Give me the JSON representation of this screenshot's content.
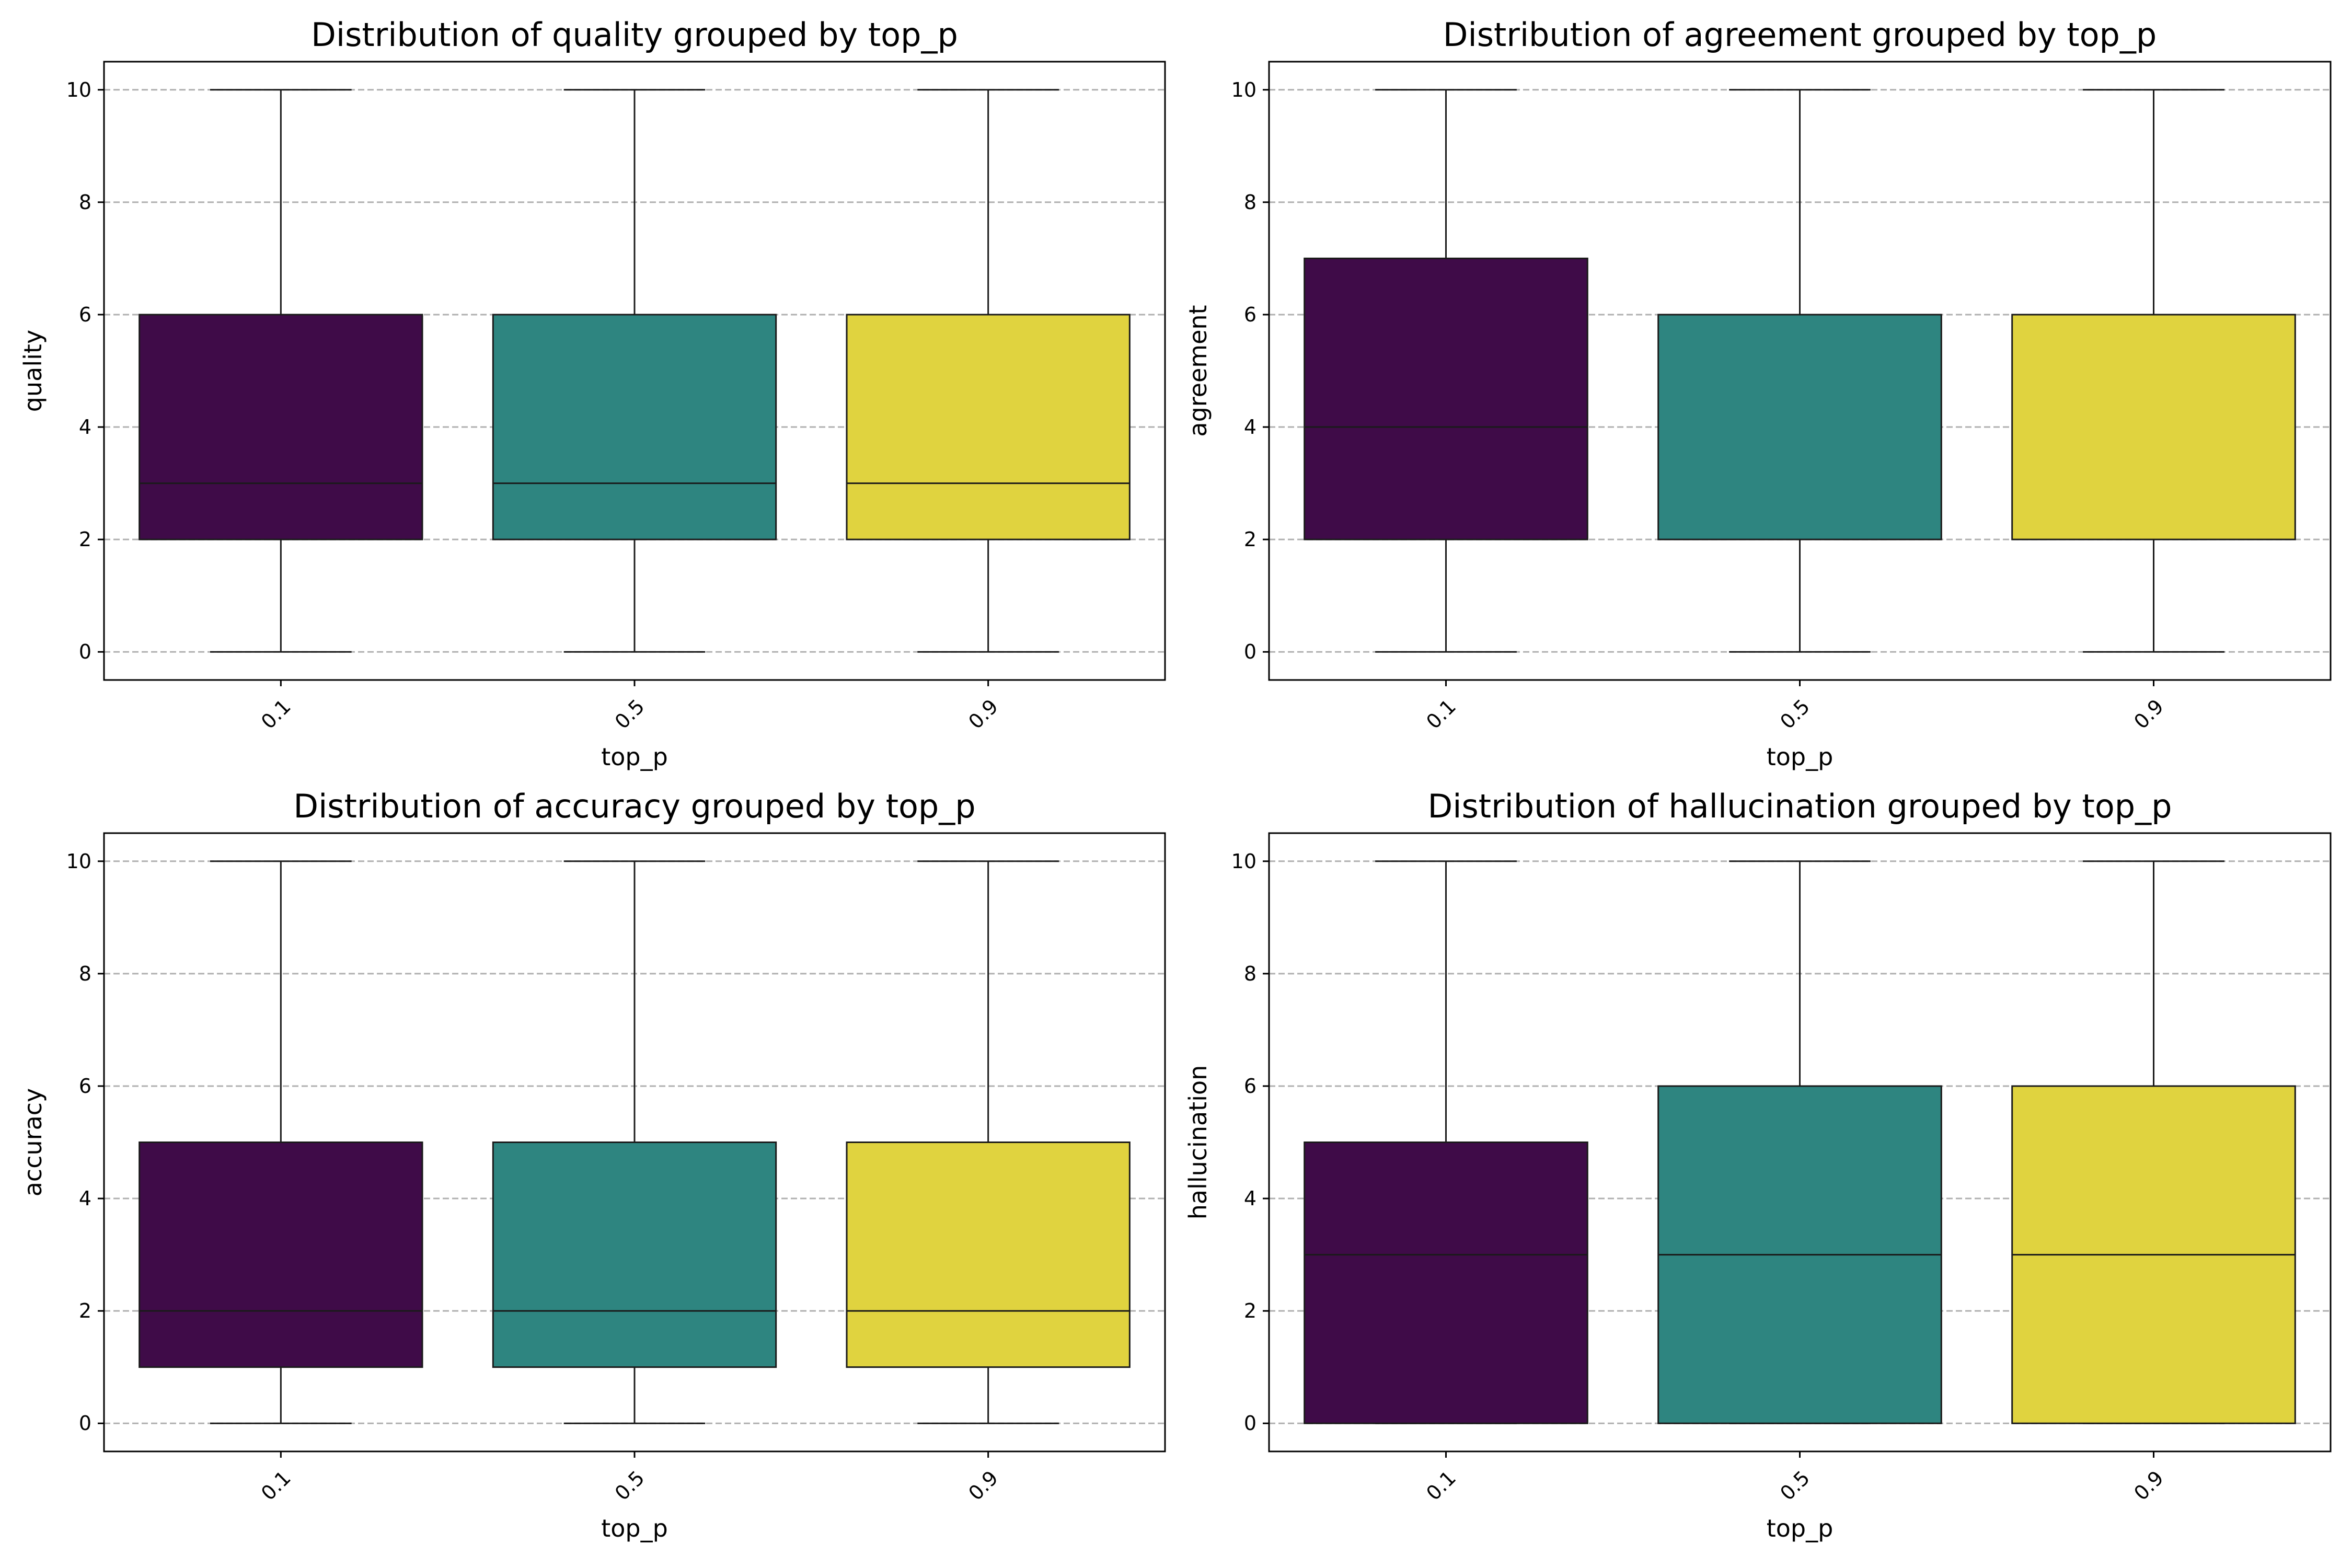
{
  "chart_data": [
    {
      "type": "box",
      "title": "Distribution of quality grouped by top_p",
      "xlabel": "top_p",
      "ylabel": "quality",
      "categories": [
        "0.1",
        "0.5",
        "0.9"
      ],
      "colors": [
        "#3f0b48",
        "#2e8580",
        "#e0d33f"
      ],
      "ylim": [
        -0.5,
        10.5
      ],
      "yticks": [
        0,
        2,
        4,
        6,
        8,
        10
      ],
      "grid": "y",
      "boxes": [
        {
          "min": 0,
          "q1": 2,
          "median": 3,
          "q3": 6,
          "max": 10
        },
        {
          "min": 0,
          "q1": 2,
          "median": 3,
          "q3": 6,
          "max": 10
        },
        {
          "min": 0,
          "q1": 2,
          "median": 3,
          "q3": 6,
          "max": 10
        }
      ]
    },
    {
      "type": "box",
      "title": "Distribution of agreement grouped by top_p",
      "xlabel": "top_p",
      "ylabel": "agreement",
      "categories": [
        "0.1",
        "0.5",
        "0.9"
      ],
      "colors": [
        "#3f0b48",
        "#2e8580",
        "#e0d33f"
      ],
      "ylim": [
        -0.5,
        10.5
      ],
      "yticks": [
        0,
        2,
        4,
        6,
        8,
        10
      ],
      "grid": "y",
      "boxes": [
        {
          "min": 0,
          "q1": 2,
          "median": 4,
          "q3": 7,
          "max": 10
        },
        {
          "min": 0,
          "q1": 2,
          "median": 6,
          "q3": 6,
          "max": 10
        },
        {
          "min": 0,
          "q1": 2,
          "median": 6,
          "q3": 6,
          "max": 10
        }
      ]
    },
    {
      "type": "box",
      "title": "Distribution of accuracy grouped by top_p",
      "xlabel": "top_p",
      "ylabel": "accuracy",
      "categories": [
        "0.1",
        "0.5",
        "0.9"
      ],
      "colors": [
        "#3f0b48",
        "#2e8580",
        "#e0d33f"
      ],
      "ylim": [
        -0.5,
        10.5
      ],
      "yticks": [
        0,
        2,
        4,
        6,
        8,
        10
      ],
      "grid": "y",
      "boxes": [
        {
          "min": 0,
          "q1": 1,
          "median": 2,
          "q3": 5,
          "max": 10
        },
        {
          "min": 0,
          "q1": 1,
          "median": 2,
          "q3": 5,
          "max": 10
        },
        {
          "min": 0,
          "q1": 1,
          "median": 2,
          "q3": 5,
          "max": 10
        }
      ]
    },
    {
      "type": "box",
      "title": "Distribution of hallucination grouped by top_p",
      "xlabel": "top_p",
      "ylabel": "hallucination",
      "categories": [
        "0.1",
        "0.5",
        "0.9"
      ],
      "colors": [
        "#3f0b48",
        "#2e8580",
        "#e0d33f"
      ],
      "ylim": [
        -0.5,
        10.5
      ],
      "yticks": [
        0,
        2,
        4,
        6,
        8,
        10
      ],
      "grid": "y",
      "boxes": [
        {
          "min": 0,
          "q1": 0,
          "median": 3,
          "q3": 5,
          "max": 10
        },
        {
          "min": 0,
          "q1": 0,
          "median": 3,
          "q3": 6,
          "max": 10
        },
        {
          "min": 0,
          "q1": 0,
          "median": 3,
          "q3": 6,
          "max": 10
        }
      ]
    }
  ]
}
